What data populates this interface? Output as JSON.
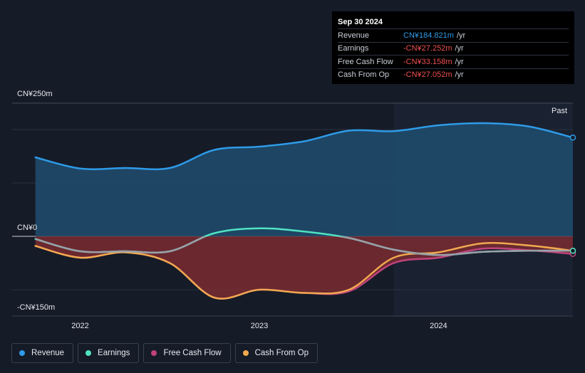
{
  "tooltip": {
    "date": "Sep 30 2024",
    "rows": [
      {
        "label": "Revenue",
        "value": "CN¥184.821m",
        "unit": "/yr"
      },
      {
        "label": "Earnings",
        "value": "-CN¥27.252m",
        "unit": "/yr"
      },
      {
        "label": "Free Cash Flow",
        "value": "-CN¥33.158m",
        "unit": "/yr"
      },
      {
        "label": "Cash From Op",
        "value": "-CN¥27.052m",
        "unit": "/yr"
      }
    ]
  },
  "past_label": "Past",
  "colors": {
    "revenue": "#2e9be8",
    "earnings": "#50e3c2",
    "fcf": "#c0437c",
    "cfo": "#f0a94f",
    "negative_fill": "#7a2a31",
    "positive_fill": "#1f4a6b"
  },
  "chart_data": {
    "type": "area",
    "title": "",
    "ylim": [
      -150,
      250
    ],
    "y_tick_labels": [
      "CN¥250m",
      "CN¥0",
      "-CN¥150m"
    ],
    "y_tick_values": [
      250,
      0,
      -150
    ],
    "xlim": [
      2021.62,
      2024.75
    ],
    "x_tick_labels": [
      "2022",
      "2023",
      "2024"
    ],
    "x_tick_values": [
      2022.0,
      2023.0,
      2024.0
    ],
    "past_start": 2023.75,
    "series": [
      {
        "name": "Revenue",
        "key": "revenue",
        "x": [
          2021.75,
          2022.0,
          2022.25,
          2022.5,
          2022.75,
          2023.0,
          2023.25,
          2023.5,
          2023.75,
          2024.0,
          2024.25,
          2024.5,
          2024.75
        ],
        "values": [
          148,
          127,
          128,
          128,
          162,
          168,
          178,
          198,
          197,
          208,
          212,
          206,
          185
        ]
      },
      {
        "name": "Earnings",
        "key": "earnings",
        "x": [
          2021.75,
          2022.0,
          2022.25,
          2022.5,
          2022.75,
          2023.0,
          2023.25,
          2023.5,
          2023.75,
          2024.0,
          2024.25,
          2024.5,
          2024.75
        ],
        "values": [
          -5,
          -28,
          -28,
          -28,
          6,
          15,
          9,
          -3,
          -25,
          -35,
          -29,
          -27,
          -27
        ]
      },
      {
        "name": "Free Cash Flow",
        "key": "fcf",
        "x": [
          2021.75,
          2022.0,
          2022.25,
          2022.5,
          2022.75,
          2023.0,
          2023.25,
          2023.5,
          2023.75,
          2024.0,
          2024.25,
          2024.5,
          2024.75
        ],
        "values": [
          -18,
          -40,
          -30,
          -50,
          -115,
          -100,
          -106,
          -103,
          -50,
          -40,
          -23,
          -26,
          -33
        ]
      },
      {
        "name": "Cash From Op",
        "key": "cfo",
        "x": [
          2021.75,
          2022.0,
          2022.25,
          2022.5,
          2022.75,
          2023.0,
          2023.25,
          2023.5,
          2023.75,
          2024.0,
          2024.25,
          2024.5,
          2024.75
        ],
        "values": [
          -18,
          -40,
          -30,
          -50,
          -115,
          -100,
          -106,
          -100,
          -40,
          -30,
          -13,
          -17,
          -27
        ]
      }
    ]
  },
  "legend": [
    {
      "label": "Revenue",
      "key": "revenue"
    },
    {
      "label": "Earnings",
      "key": "earnings"
    },
    {
      "label": "Free Cash Flow",
      "key": "fcf"
    },
    {
      "label": "Cash From Op",
      "key": "cfo"
    }
  ]
}
